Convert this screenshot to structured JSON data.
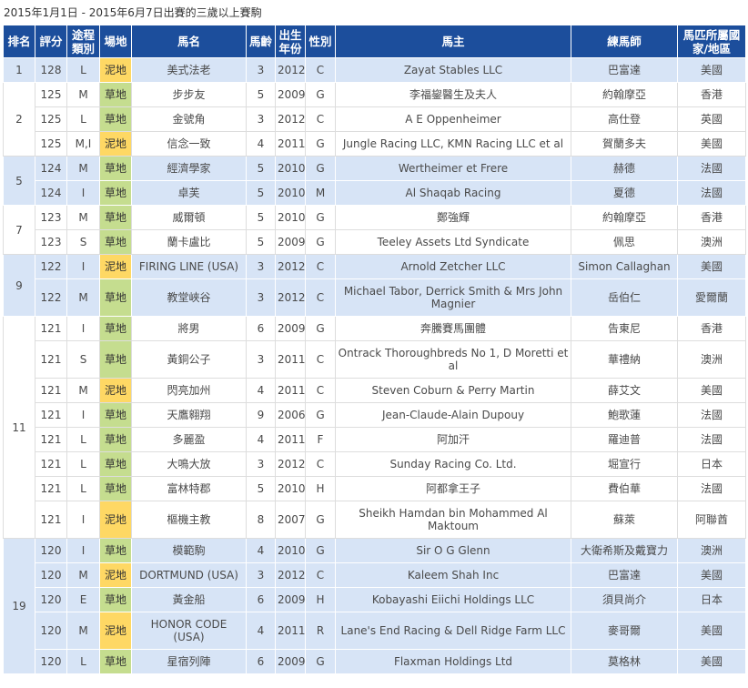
{
  "caption": "2015年1月1日 - 2015年6月7日出賽的三歲以上賽駒",
  "headers": {
    "rank": "排名",
    "rating": "評分",
    "distance": "途程類別",
    "surface": "場地",
    "horse": "馬名",
    "age": "馬齡",
    "year": "出生年份",
    "sex": "性別",
    "owner": "馬主",
    "trainer": "練馬師",
    "country": "馬匹所屬國家/地區"
  },
  "groups": [
    {
      "rank": "1",
      "rows": [
        {
          "rating": "128",
          "distance": "L",
          "surface": "泥地",
          "surface_type": "dirt",
          "horse": "美式法老",
          "age": "3",
          "year": "2012",
          "sex": "C",
          "owner": "Zayat Stables LLC",
          "trainer": "巴富達",
          "country": "美國"
        }
      ]
    },
    {
      "rank": "2",
      "rows": [
        {
          "rating": "125",
          "distance": "M",
          "surface": "草地",
          "surface_type": "turf",
          "horse": "步步友",
          "age": "5",
          "year": "2009",
          "sex": "G",
          "owner": "李福鋆醫生及夫人",
          "trainer": "約翰摩亞",
          "country": "香港"
        },
        {
          "rating": "125",
          "distance": "L",
          "surface": "草地",
          "surface_type": "turf",
          "horse": "金號角",
          "age": "3",
          "year": "2012",
          "sex": "C",
          "owner": "A E Oppenheimer",
          "trainer": "高仕登",
          "country": "英國"
        },
        {
          "rating": "125",
          "distance": "M,I",
          "surface": "泥地",
          "surface_type": "dirt",
          "horse": "信念一致",
          "age": "4",
          "year": "2011",
          "sex": "G",
          "owner": "Jungle Racing LLC, KMN Racing LLC et al",
          "trainer": "賀蘭多夫",
          "country": "美國"
        }
      ]
    },
    {
      "rank": "5",
      "rows": [
        {
          "rating": "124",
          "distance": "M",
          "surface": "草地",
          "surface_type": "turf",
          "horse": "經濟學家",
          "age": "5",
          "year": "2010",
          "sex": "G",
          "owner": "Wertheimer et Frere",
          "trainer": "赫德",
          "country": "法國"
        },
        {
          "rating": "124",
          "distance": "I",
          "surface": "草地",
          "surface_type": "turf",
          "horse": "卓芙",
          "age": "5",
          "year": "2010",
          "sex": "M",
          "owner": "Al Shaqab Racing",
          "trainer": "夏德",
          "country": "法國"
        }
      ]
    },
    {
      "rank": "7",
      "rows": [
        {
          "rating": "123",
          "distance": "M",
          "surface": "草地",
          "surface_type": "turf",
          "horse": "威爾頓",
          "age": "5",
          "year": "2010",
          "sex": "G",
          "owner": "鄭強輝",
          "trainer": "約翰摩亞",
          "country": "香港"
        },
        {
          "rating": "123",
          "distance": "S",
          "surface": "草地",
          "surface_type": "turf",
          "horse": "蘭卡盧比",
          "age": "5",
          "year": "2009",
          "sex": "G",
          "owner": "Teeley Assets Ltd Syndicate",
          "trainer": "佩思",
          "country": "澳洲"
        }
      ]
    },
    {
      "rank": "9",
      "rows": [
        {
          "rating": "122",
          "distance": "I",
          "surface": "泥地",
          "surface_type": "dirt",
          "horse": "FIRING LINE (USA)",
          "age": "3",
          "year": "2012",
          "sex": "C",
          "owner": "Arnold Zetcher  LLC",
          "trainer": "Simon Callaghan",
          "country": "美國"
        },
        {
          "rating": "122",
          "distance": "M",
          "surface": "草地",
          "surface_type": "turf",
          "horse": "教堂峽谷",
          "age": "3",
          "year": "2012",
          "sex": "C",
          "owner": "Michael Tabor, Derrick Smith & Mrs John Magnier",
          "trainer": "岳伯仁",
          "country": "愛爾蘭"
        }
      ]
    },
    {
      "rank": "11",
      "rows": [
        {
          "rating": "121",
          "distance": "I",
          "surface": "草地",
          "surface_type": "turf",
          "horse": "將男",
          "age": "6",
          "year": "2009",
          "sex": "G",
          "owner": "奔騰賽馬團體",
          "trainer": "告東尼",
          "country": "香港"
        },
        {
          "rating": "121",
          "distance": "S",
          "surface": "草地",
          "surface_type": "turf",
          "horse": "黃銅公子",
          "age": "3",
          "year": "2011",
          "sex": "C",
          "owner": "Ontrack Thoroughbreds No 1, D Moretti et al",
          "trainer": "華禮納",
          "country": "澳洲"
        },
        {
          "rating": "121",
          "distance": "M",
          "surface": "泥地",
          "surface_type": "dirt",
          "horse": "閃亮加州",
          "age": "4",
          "year": "2011",
          "sex": "C",
          "owner": "Steven Coburn & Perry Martin",
          "trainer": "薛艾文",
          "country": "美國"
        },
        {
          "rating": "121",
          "distance": "I",
          "surface": "草地",
          "surface_type": "turf",
          "horse": "天鷹翱翔",
          "age": "9",
          "year": "2006",
          "sex": "G",
          "owner": "Jean-Claude-Alain Dupouy",
          "trainer": "鮑歌蓮",
          "country": "法國"
        },
        {
          "rating": "121",
          "distance": "L",
          "surface": "草地",
          "surface_type": "turf",
          "horse": "多麗盈",
          "age": "4",
          "year": "2011",
          "sex": "F",
          "owner": "阿加汗",
          "trainer": "羅迪普",
          "country": "法國"
        },
        {
          "rating": "121",
          "distance": "L",
          "surface": "草地",
          "surface_type": "turf",
          "horse": "大鳴大放",
          "age": "3",
          "year": "2012",
          "sex": "C",
          "owner": "Sunday Racing Co. Ltd.",
          "trainer": "堀宣行",
          "country": "日本"
        },
        {
          "rating": "121",
          "distance": "L",
          "surface": "草地",
          "surface_type": "turf",
          "horse": "富林特郡",
          "age": "5",
          "year": "2010",
          "sex": "H",
          "owner": "阿都拿王子",
          "trainer": "費伯華",
          "country": "法國"
        },
        {
          "rating": "121",
          "distance": "I",
          "surface": "泥地",
          "surface_type": "dirt",
          "horse": "樞機主教",
          "age": "8",
          "year": "2007",
          "sex": "G",
          "owner": "Sheikh Hamdan bin Mohammed Al Maktoum",
          "trainer": "蘇萊",
          "country": "阿聯酋"
        }
      ]
    },
    {
      "rank": "19",
      "rows": [
        {
          "rating": "120",
          "distance": "I",
          "surface": "草地",
          "surface_type": "turf",
          "horse": "模範駒",
          "age": "4",
          "year": "2010",
          "sex": "G",
          "owner": "Sir O G Glenn",
          "trainer": "大衛希斯及戴寶力",
          "country": "澳洲"
        },
        {
          "rating": "120",
          "distance": "M",
          "surface": "泥地",
          "surface_type": "dirt",
          "horse": "DORTMUND (USA)",
          "age": "3",
          "year": "2012",
          "sex": "C",
          "owner": "Kaleem Shah Inc",
          "trainer": "巴富達",
          "country": "美國"
        },
        {
          "rating": "120",
          "distance": "E",
          "surface": "草地",
          "surface_type": "turf",
          "horse": "黃金船",
          "age": "6",
          "year": "2009",
          "sex": "H",
          "owner": "Kobayashi Eiichi Holdings LLC",
          "trainer": "須貝尚介",
          "country": "日本"
        },
        {
          "rating": "120",
          "distance": "M",
          "surface": "泥地",
          "surface_type": "dirt",
          "horse": "HONOR CODE (USA)",
          "age": "4",
          "year": "2011",
          "sex": "R",
          "owner": "Lane's End Racing & Dell Ridge Farm LLC",
          "trainer": "麥哥爾",
          "country": "美國"
        },
        {
          "rating": "120",
          "distance": "L",
          "surface": "草地",
          "surface_type": "turf",
          "horse": "星宿列陣",
          "age": "6",
          "year": "2009",
          "sex": "G",
          "owner": "Flaxman Holdings Ltd",
          "trainer": "莫格林",
          "country": "美國"
        }
      ]
    }
  ]
}
